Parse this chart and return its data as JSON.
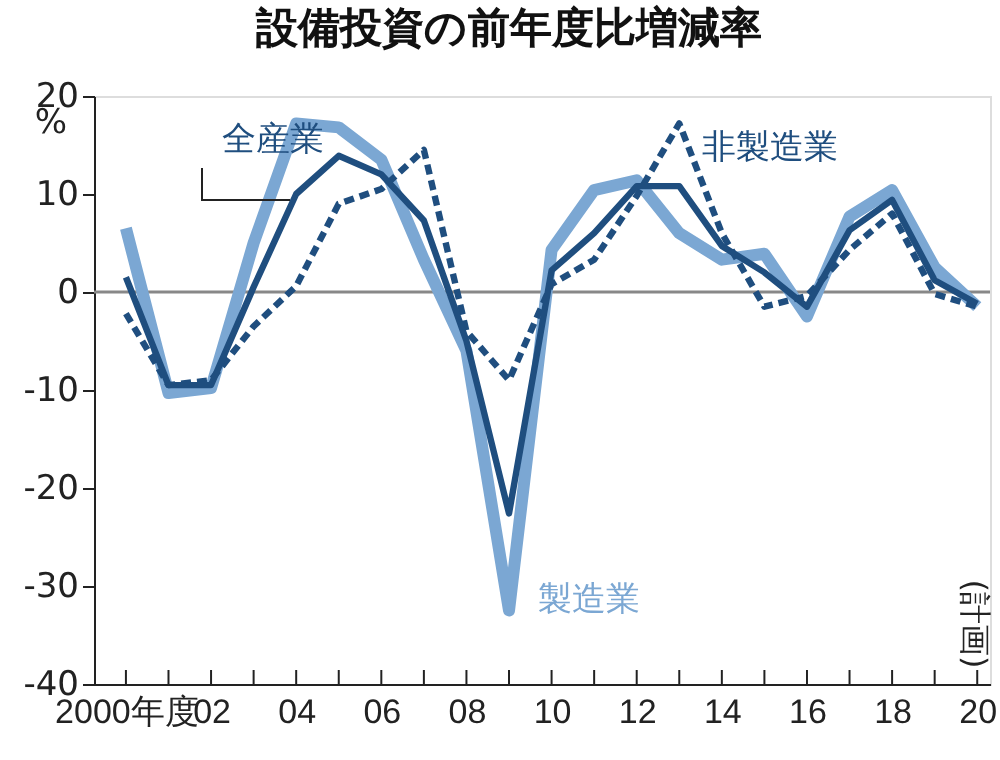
{
  "chart_data": {
    "type": "line",
    "title": "設備投資の前年度比増減率",
    "ylabel": "%",
    "x": [
      2000,
      2001,
      2002,
      2003,
      2004,
      2005,
      2006,
      2007,
      2008,
      2009,
      2010,
      2011,
      2012,
      2013,
      2014,
      2015,
      2016,
      2017,
      2018,
      2019,
      2020
    ],
    "series": [
      {
        "name": "製造業",
        "color": "#7ba7d3",
        "line_style": "solid",
        "values": [
          6.5,
          -10.3,
          -9.8,
          5,
          17.2,
          16.8,
          13.5,
          3.3,
          -6,
          -32.5,
          4.3,
          10.4,
          11.4,
          6,
          3.3,
          3.9,
          -2.5,
          7.7,
          10.4,
          2.5,
          -1.5
        ]
      },
      {
        "name": "非製造業",
        "color": "#1f4e7f",
        "line_style": "dashed",
        "values": [
          -2.2,
          -9.5,
          -9,
          -3.5,
          0.6,
          9,
          10.5,
          14.5,
          -4,
          -9,
          0.8,
          3.3,
          9.8,
          17.2,
          6,
          -1.5,
          -0.4,
          4.3,
          8,
          -0.2,
          -1.5
        ]
      },
      {
        "name": "全産業",
        "color": "#1f4e7f",
        "line_style": "solid",
        "values": [
          1.5,
          -9.5,
          -9.5,
          0.5,
          10,
          13.9,
          12,
          7.3,
          -5,
          -22.6,
          2.2,
          6,
          10.8,
          10.8,
          4.7,
          2,
          -1.5,
          6.3,
          9.4,
          1.2,
          -1.2
        ]
      }
    ],
    "xlim": [
      1999.25,
      2020.3
    ],
    "ylim": [
      -40,
      20
    ],
    "xticks": [
      {
        "value": 2000,
        "label": "2000年度"
      },
      {
        "value": 2001,
        "label": null
      },
      {
        "value": 2002,
        "label": "02"
      },
      {
        "value": 2003,
        "label": null
      },
      {
        "value": 2004,
        "label": "04"
      },
      {
        "value": 2005,
        "label": null
      },
      {
        "value": 2006,
        "label": "06"
      },
      {
        "value": 2007,
        "label": null
      },
      {
        "value": 2008,
        "label": "08"
      },
      {
        "value": 2009,
        "label": null
      },
      {
        "value": 2010,
        "label": "10"
      },
      {
        "value": 2011,
        "label": null
      },
      {
        "value": 2012,
        "label": "12"
      },
      {
        "value": 2013,
        "label": null
      },
      {
        "value": 2014,
        "label": "14"
      },
      {
        "value": 2015,
        "label": null
      },
      {
        "value": 2016,
        "label": "16"
      },
      {
        "value": 2017,
        "label": null
      },
      {
        "value": 2018,
        "label": "18"
      },
      {
        "value": 2019,
        "label": null
      },
      {
        "value": 2020,
        "label": "20"
      }
    ],
    "yticks": [
      -40,
      -30,
      -20,
      -10,
      0,
      10,
      20
    ],
    "ref_lines": [
      {
        "axis": "y",
        "value": 0,
        "label": null,
        "color": "#888888",
        "line_style": "solid"
      }
    ],
    "annotations": [
      "(計画)"
    ],
    "grid": false,
    "legend": false
  }
}
